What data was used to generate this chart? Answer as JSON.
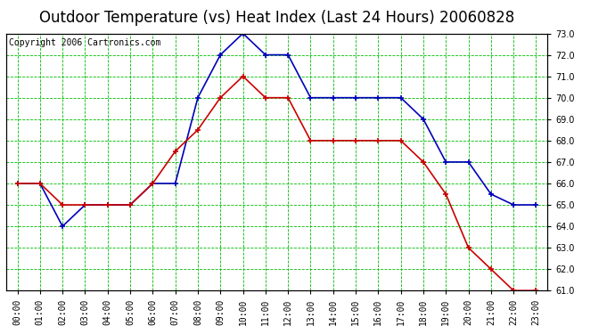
{
  "title": "Outdoor Temperature (vs) Heat Index (Last 24 Hours) 20060828",
  "copyright": "Copyright 2006 Cartronics.com",
  "hours": [
    "00:00",
    "01:00",
    "02:00",
    "03:00",
    "04:00",
    "05:00",
    "06:00",
    "07:00",
    "08:00",
    "09:00",
    "10:00",
    "11:00",
    "12:00",
    "13:00",
    "14:00",
    "15:00",
    "16:00",
    "17:00",
    "18:00",
    "19:00",
    "20:00",
    "21:00",
    "22:00",
    "23:00"
  ],
  "blue_data": [
    66.0,
    66.0,
    64.0,
    65.0,
    65.0,
    65.0,
    66.0,
    66.0,
    70.0,
    72.0,
    73.0,
    72.0,
    72.0,
    70.0,
    70.0,
    70.0,
    70.0,
    70.0,
    69.0,
    67.0,
    67.0,
    65.5,
    65.0,
    65.0
  ],
  "red_data": [
    66.0,
    66.0,
    65.0,
    65.0,
    65.0,
    65.0,
    66.0,
    67.5,
    68.5,
    70.0,
    71.0,
    70.0,
    70.0,
    68.0,
    68.0,
    68.0,
    68.0,
    68.0,
    67.0,
    65.5,
    63.0,
    62.0,
    61.0,
    61.0
  ],
  "blue_color": "#0000bb",
  "red_color": "#cc0000",
  "bg_color": "#ffffff",
  "plot_bg_color": "#ffffff",
  "grid_color": "#00bb00",
  "ylim_min": 61.0,
  "ylim_max": 73.0,
  "ytick_step": 1.0,
  "title_fontsize": 12,
  "copyright_fontsize": 7,
  "tick_fontsize": 7,
  "marker": "s",
  "marker_size": 3,
  "linewidth": 1.2
}
